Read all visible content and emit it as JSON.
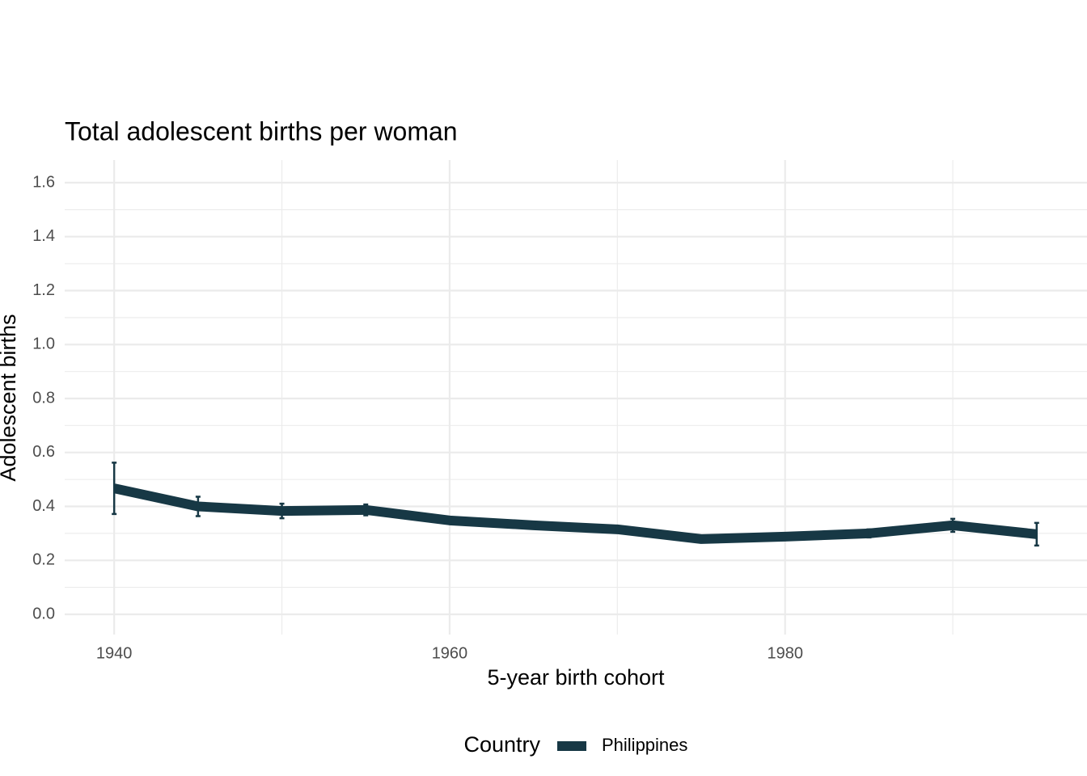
{
  "chart_data": {
    "type": "line",
    "title": "Total adolescent births per woman",
    "x_label": "5-year birth cohort",
    "y_label": "Adolescent births",
    "legend_title": "Country",
    "legend_position": "bottom",
    "x": [
      1940,
      1945,
      1950,
      1955,
      1960,
      1965,
      1970,
      1975,
      1980,
      1985,
      1990,
      1995
    ],
    "series": [
      {
        "name": "Philippines",
        "color": "#173845",
        "values": [
          0.467,
          0.4,
          0.383,
          0.387,
          0.348,
          0.33,
          0.315,
          0.279,
          0.288,
          0.3,
          0.33,
          0.297
        ],
        "errors": [
          0.095,
          0.036,
          0.027,
          0.02,
          0.01,
          0.005,
          0.005,
          0.005,
          0.008,
          0.015,
          0.024,
          0.042
        ]
      }
    ],
    "xlim": [
      1937.05,
      1998
    ],
    "ylim": [
      -0.075,
      1.684
    ],
    "xticks": [
      1940,
      1960,
      1980
    ],
    "yticks": [
      {
        "value": 0,
        "label": "0.0"
      },
      {
        "value": 0.2,
        "label": "0.2"
      },
      {
        "value": 0.4,
        "label": "0.4"
      },
      {
        "value": 0.6,
        "label": "0.6"
      },
      {
        "value": 0.8,
        "label": "0.8"
      },
      {
        "value": 1,
        "label": "1.0"
      },
      {
        "value": 1.2,
        "label": "1.2"
      },
      {
        "value": 1.4,
        "label": "1.4"
      },
      {
        "value": 1.6,
        "label": "1.6"
      }
    ],
    "grid": true
  }
}
